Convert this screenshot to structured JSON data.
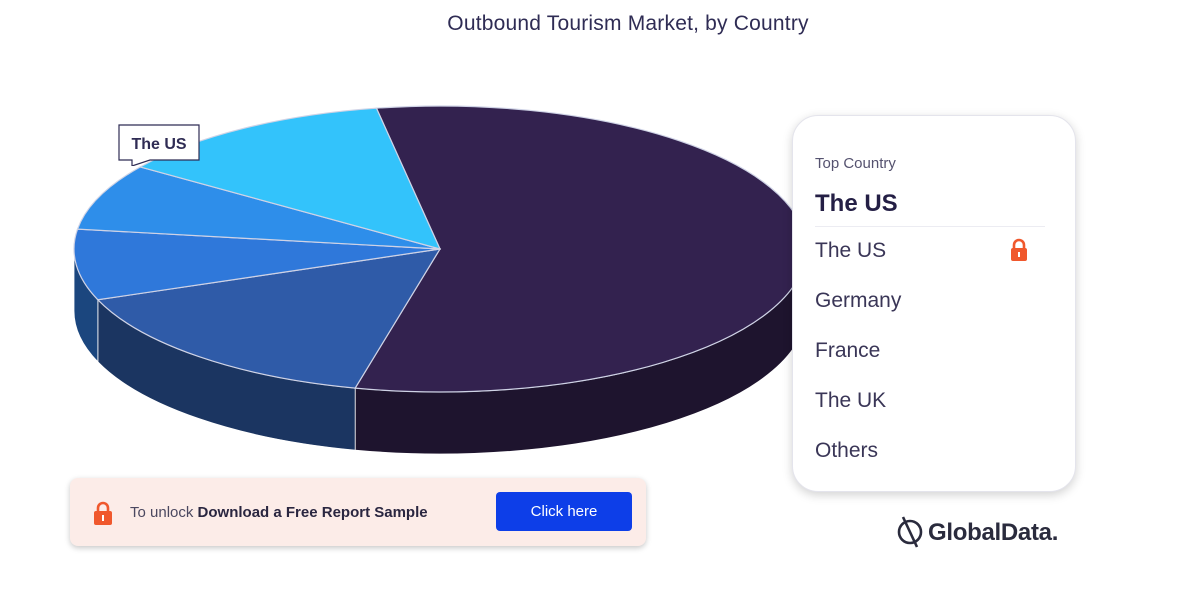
{
  "chart_data": {
    "type": "pie",
    "title": "Outbound Tourism Market, by Country",
    "slices": [
      {
        "label": "The US",
        "value": 56.5,
        "color": "#33224f"
      },
      {
        "label": "Germany",
        "value": 15.5,
        "color": "#2f5ba8"
      },
      {
        "label": "France",
        "value": 8.0,
        "color": "#2f78da"
      },
      {
        "label": "The UK",
        "value": 7.5,
        "color": "#2e8eea"
      },
      {
        "label": "Others",
        "value": 12.5,
        "color": "#33c3fb"
      }
    ],
    "side_color_factor": 0.58,
    "callout_label": "The US"
  },
  "panel": {
    "heading": "Top Country",
    "top_country": "The US",
    "items": [
      "The US",
      "Germany",
      "France",
      "The UK",
      "Others"
    ]
  },
  "unlock": {
    "prefix": "To unlock",
    "bold": "Download a Free Report Sample",
    "button": "Click here"
  },
  "brand": {
    "name": "GlobalData."
  },
  "icons": {
    "lock": "lock-icon",
    "logo": "globaldata-logo-icon"
  },
  "colors": {
    "lock": "#f0582d",
    "button": "#0d3ee8",
    "banner": "#fcece8"
  }
}
